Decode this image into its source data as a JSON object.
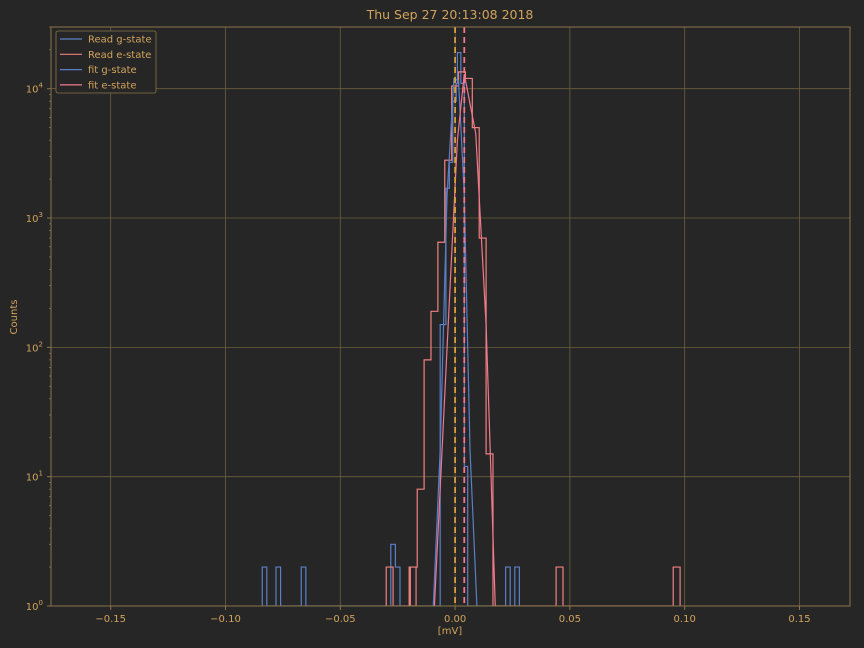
{
  "chart_data": {
    "type": "histogram",
    "title": "Thu Sep 27 20:13:08 2018",
    "xlabel": "[mV]",
    "ylabel": "Counts",
    "xlim": [
      -0.176,
      0.172
    ],
    "ylim": [
      1,
      30000
    ],
    "yscale": "log",
    "grid": true,
    "legend_position": "top-left",
    "x_ticks": [
      -0.15,
      -0.1,
      -0.05,
      0.0,
      0.05,
      0.1,
      0.15
    ],
    "x_tick_labels": [
      "−0.15",
      "−0.10",
      "−0.05",
      "0.00",
      "0.05",
      "0.10",
      "0.15"
    ],
    "y_ticks": [
      1,
      10,
      100,
      1000,
      10000
    ],
    "y_tick_labels": [
      {
        "base": "10",
        "exp": "0"
      },
      {
        "base": "10",
        "exp": "1"
      },
      {
        "base": "10",
        "exp": "2"
      },
      {
        "base": "10",
        "exp": "3"
      },
      {
        "base": "10",
        "exp": "4"
      }
    ],
    "series": [
      {
        "name": "Read g-state",
        "kind": "step",
        "color": "#5b7fc7",
        "points": [
          [
            -0.084,
            1
          ],
          [
            -0.084,
            2
          ],
          [
            -0.082,
            2
          ],
          [
            -0.082,
            1
          ],
          [
            -0.078,
            1
          ],
          [
            -0.078,
            2
          ],
          [
            -0.076,
            2
          ],
          [
            -0.076,
            1
          ],
          [
            -0.067,
            1
          ],
          [
            -0.067,
            2
          ],
          [
            -0.065,
            2
          ],
          [
            -0.065,
            1
          ],
          [
            -0.028,
            1
          ],
          [
            -0.028,
            3
          ],
          [
            -0.026,
            3
          ],
          [
            -0.026,
            2
          ],
          [
            -0.024,
            2
          ],
          [
            -0.024,
            1
          ],
          [
            -0.0065,
            1
          ],
          [
            -0.0065,
            150
          ],
          [
            -0.004,
            150
          ],
          [
            -0.004,
            1700
          ],
          [
            -0.0025,
            1700
          ],
          [
            -0.0025,
            2700
          ],
          [
            -0.001,
            2700
          ],
          [
            -0.001,
            8000
          ],
          [
            0.0005,
            8000
          ],
          [
            0.0005,
            11000
          ],
          [
            0.001,
            11000
          ],
          [
            0.001,
            19000
          ],
          [
            0.0025,
            19000
          ],
          [
            0.0025,
            11000
          ],
          [
            0.004,
            11000
          ],
          [
            0.004,
            12
          ],
          [
            0.0055,
            12
          ],
          [
            0.0055,
            1
          ],
          [
            0.022,
            1
          ],
          [
            0.022,
            2
          ],
          [
            0.024,
            2
          ],
          [
            0.024,
            1
          ],
          [
            0.026,
            1
          ],
          [
            0.026,
            2
          ],
          [
            0.028,
            2
          ],
          [
            0.028,
            1
          ]
        ]
      },
      {
        "name": "Read e-state",
        "kind": "step",
        "color": "#f08080",
        "points": [
          [
            -0.03,
            1
          ],
          [
            -0.03,
            2
          ],
          [
            -0.027,
            2
          ],
          [
            -0.027,
            1
          ],
          [
            -0.02,
            1
          ],
          [
            -0.02,
            2
          ],
          [
            -0.017,
            2
          ],
          [
            -0.017,
            1
          ],
          [
            -0.0195,
            1
          ],
          [
            -0.0195,
            2
          ],
          [
            -0.0165,
            2
          ],
          [
            -0.0165,
            8
          ],
          [
            -0.0135,
            8
          ],
          [
            -0.0135,
            80
          ],
          [
            -0.0105,
            80
          ],
          [
            -0.0105,
            190
          ],
          [
            -0.0075,
            190
          ],
          [
            -0.0075,
            650
          ],
          [
            -0.0045,
            650
          ],
          [
            -0.0045,
            2800
          ],
          [
            -0.0015,
            2800
          ],
          [
            -0.0015,
            10500
          ],
          [
            0.0015,
            10500
          ],
          [
            0.0015,
            13500
          ],
          [
            0.0045,
            13500
          ],
          [
            0.0045,
            12000
          ],
          [
            0.0075,
            12000
          ],
          [
            0.0075,
            5000
          ],
          [
            0.0105,
            5000
          ],
          [
            0.0105,
            700
          ],
          [
            0.0135,
            700
          ],
          [
            0.0135,
            15
          ],
          [
            0.0165,
            15
          ],
          [
            0.0165,
            1
          ],
          [
            0.044,
            1
          ],
          [
            0.044,
            2
          ],
          [
            0.047,
            2
          ],
          [
            0.047,
            1
          ],
          [
            0.095,
            1
          ],
          [
            0.095,
            2
          ],
          [
            0.098,
            2
          ],
          [
            0.098,
            1
          ]
        ]
      },
      {
        "name": "fit g-state",
        "kind": "line",
        "color": "#5b7fc7",
        "x": [
          -0.0095,
          -0.0065,
          -0.0035,
          -0.0005,
          0.0015,
          0.004,
          0.0065,
          0.0095
        ],
        "y": [
          1,
          16,
          1500,
          12000,
          11500,
          1500,
          16,
          1
        ]
      },
      {
        "name": "fit e-state",
        "kind": "line",
        "color": "#f07890",
        "x": [
          -0.009,
          -0.003,
          0.001,
          0.004,
          0.009,
          0.0135,
          0.0175
        ],
        "y": [
          1,
          150,
          4000,
          13000,
          4500,
          150,
          1
        ]
      }
    ],
    "vlines": [
      {
        "x": 0.0,
        "color": "#d8a040",
        "style": "dashed"
      },
      {
        "x": 0.004,
        "color": "#f07888",
        "style": "dashed"
      }
    ]
  }
}
